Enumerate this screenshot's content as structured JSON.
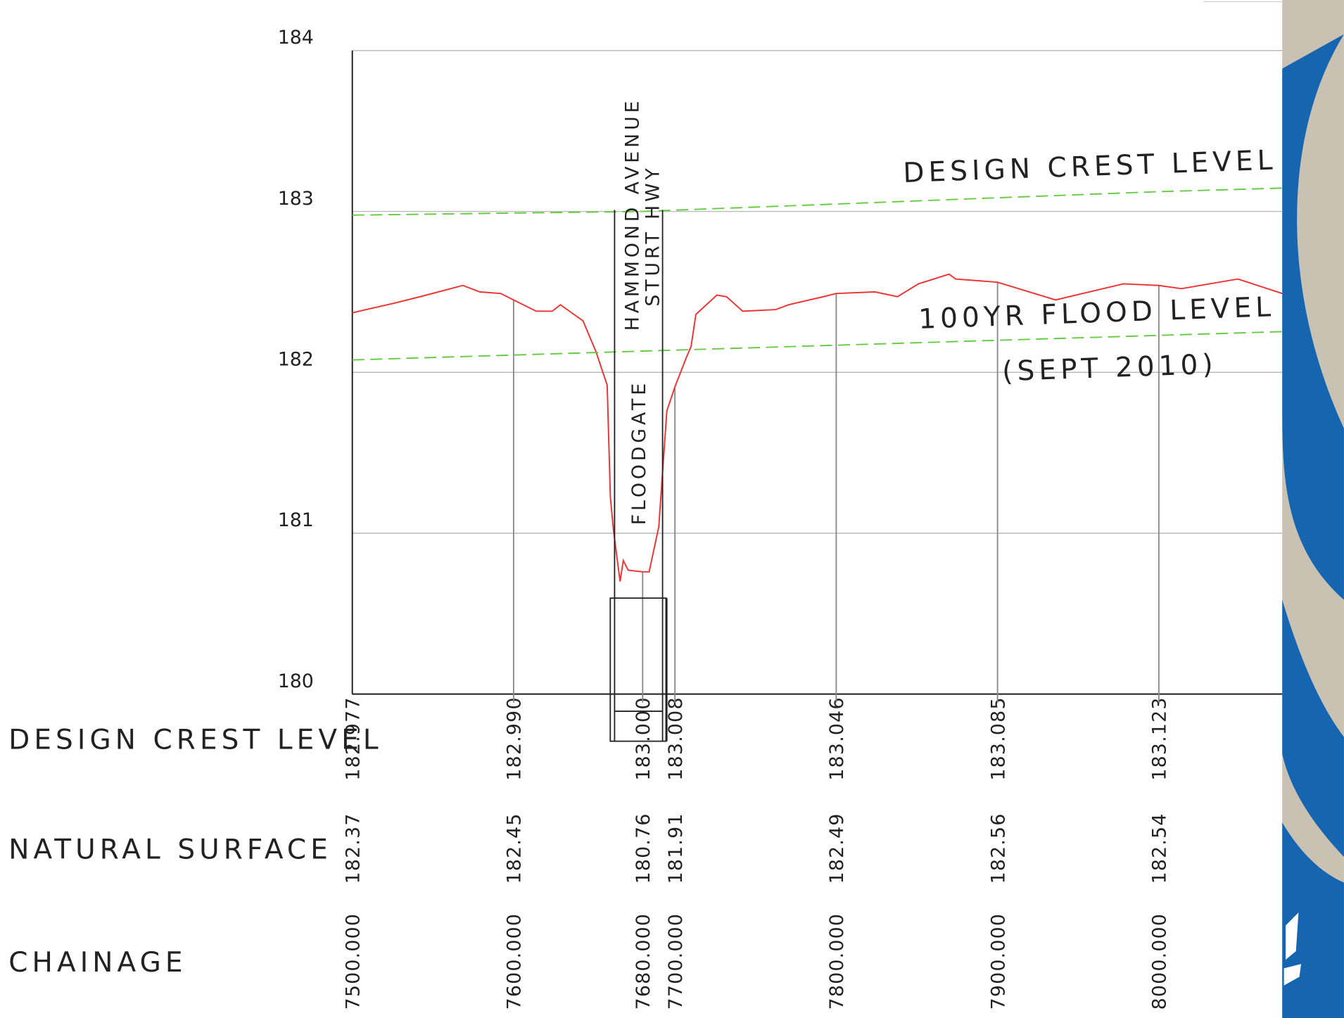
{
  "chart_data": {
    "type": "line",
    "xlim": [
      7500,
      8076.5
    ],
    "ylim": [
      180,
      184
    ],
    "yticks": [
      180,
      181,
      182,
      183,
      184
    ],
    "grid": true,
    "series": [
      {
        "name": "DESIGN CREST LEVEL",
        "color": "#66cc44",
        "dash": true,
        "x": [
          7500,
          7600,
          7680,
          7700,
          7800,
          7900,
          8000,
          8076.5
        ],
        "values": [
          182.977,
          182.99,
          183.0,
          183.008,
          183.046,
          183.085,
          183.123,
          183.145
        ]
      },
      {
        "color": "#ee3333",
        "dash": false,
        "x": [
          7500,
          7526,
          7542,
          7568.5,
          7579,
          7592,
          7600,
          7614,
          7624,
          7629,
          7636,
          7643,
          7651,
          7658,
          7660,
          7662,
          7666,
          7668,
          7671,
          7680,
          7684,
          7690,
          7692,
          7695,
          7700,
          7707,
          7710,
          7713,
          7726,
          7732,
          7742,
          7762.5,
          7770.5,
          7792,
          7800,
          7824,
          7838,
          7851,
          7870,
          7874,
          7900,
          7936,
          7978,
          8000,
          8014,
          8049,
          8076.5
        ],
        "values": [
          182.37,
          182.43,
          182.47,
          182.54,
          182.5,
          182.49,
          182.45,
          182.38,
          182.38,
          182.42,
          182.37,
          182.32,
          182.13,
          181.92,
          181.22,
          181.01,
          180.7,
          180.83,
          180.77,
          180.76,
          180.76,
          181.04,
          181.33,
          181.76,
          181.91,
          182.09,
          182.16,
          182.36,
          182.48,
          182.47,
          182.38,
          182.39,
          182.42,
          182.47,
          182.49,
          182.5,
          182.47,
          182.55,
          182.61,
          182.58,
          182.56,
          182.45,
          182.55,
          182.54,
          182.52,
          182.58,
          182.49
        ]
      },
      {
        "name": "100YR FLOOD LEVEL",
        "color": "#66cc44",
        "dash": true,
        "x": [
          7500,
          8076.5
        ],
        "values": [
          182.077,
          182.253
        ]
      }
    ],
    "annotations": [
      "(SEPT 2010)",
      "HAMMOND AVENUE",
      "STURT HWY",
      "FLOODGATE"
    ],
    "table": {
      "rows": [
        {
          "name": "DESIGN CREST LEVEL",
          "values": [
            182.977,
            182.99,
            183.0,
            183.008,
            183.046,
            183.085,
            183.123
          ],
          "value_labels": [
            "182.977",
            "182.990",
            "183.000",
            "183.008",
            "183.046",
            "183.085",
            "183.123"
          ]
        },
        {
          "name": "NATURAL SURFACE",
          "values": [
            182.37,
            182.45,
            180.76,
            181.91,
            182.49,
            182.56,
            182.54
          ]
        },
        {
          "name": "CHAINAGE",
          "values": [
            7500,
            7600,
            7680,
            7700,
            7800,
            7900,
            8000
          ],
          "value_labels": [
            "7500.000",
            "7600.000",
            "7680.000",
            "7700.000",
            "7800.000",
            "7900.000",
            "8000.000"
          ]
        }
      ]
    }
  }
}
